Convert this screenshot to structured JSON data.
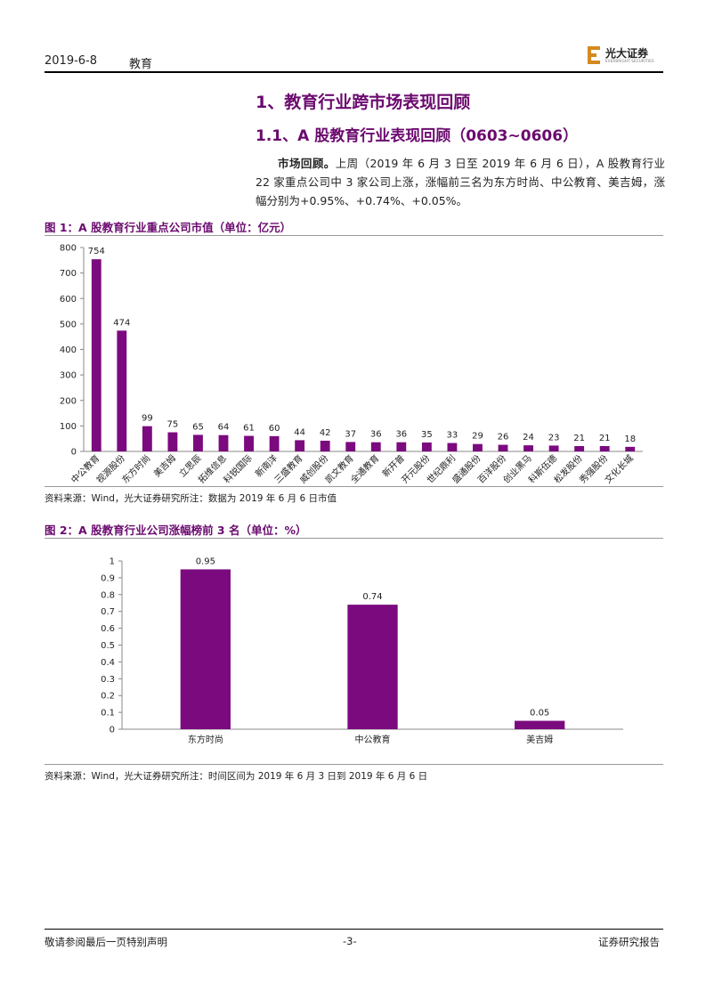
{
  "header": {
    "date": "2019-6-8",
    "section": "教育",
    "logo_text": "光大证券",
    "logo_sub": "EVERBRIGHT SECURITIES"
  },
  "headings": {
    "h1": "1、教育行业跨市场表现回顾",
    "h2": "1.1、A 股教育行业表现回顾（0603~0606）"
  },
  "paragraph": {
    "lead": "市场回顾。",
    "body": "上周（2019 年 6 月 3 日至 2019 年 6 月 6 日），A 股教育行业 22 家重点公司中 3 家公司上涨，涨幅前三名为东方时尚、中公教育、美吉姆，涨幅分别为+0.95%、+0.74%、+0.05%。"
  },
  "figures": [
    {
      "title": "图 1：A 股教育行业重点公司市值（单位：亿元）",
      "source": "资料来源：Wind，光大证券研究所注：数据为 2019 年 6 月 6 日市值"
    },
    {
      "title": "图 2：A 股教育行业公司涨幅榜前 3 名（单位：%）",
      "source": "资料来源：Wind，光大证券研究所注：时间区间为 2019 年 6 月 3 日到 2019 年 6 月 6 日"
    }
  ],
  "footer": {
    "left": "敬请参阅最后一页特别声明",
    "center": "-3-",
    "right": "证券研究报告"
  },
  "colors": {
    "bar": "#7b0a7f",
    "heading": "#6b0a6f",
    "logo": "#d48a1e"
  },
  "chart_data": [
    {
      "type": "bar",
      "categories": [
        "中公教育",
        "视源股份",
        "东方时尚",
        "美吉姆",
        "立思辰",
        "拓维信息",
        "科锐国际",
        "新南洋",
        "三盛教育",
        "威创股份",
        "凯文教育",
        "全通教育",
        "新开普",
        "开元股份",
        "世纪鼎利",
        "盛通股份",
        "百洋股份",
        "创业黑马",
        "科斯伍德",
        "松发股份",
        "秀强股份",
        "文化长城"
      ],
      "values": [
        754,
        474,
        99,
        75,
        65,
        64,
        61,
        60,
        44,
        42,
        37,
        36,
        36,
        35,
        33,
        29,
        26,
        24,
        23,
        21,
        21,
        18
      ],
      "yticks": [
        0,
        100,
        200,
        300,
        400,
        500,
        600,
        700,
        800
      ],
      "ylim": [
        0,
        800
      ],
      "grid": false,
      "legend": "none"
    },
    {
      "type": "bar",
      "categories": [
        "东方时尚",
        "中公教育",
        "美吉姆"
      ],
      "values": [
        0.95,
        0.74,
        0.05
      ],
      "yticks": [
        "0",
        "0.1",
        "0.2",
        "0.3",
        "0.4",
        "0.5",
        "0.6",
        "0.7",
        "0.8",
        "0.9",
        "1"
      ],
      "ylim": [
        0,
        1
      ],
      "grid": false,
      "legend": "none"
    }
  ]
}
